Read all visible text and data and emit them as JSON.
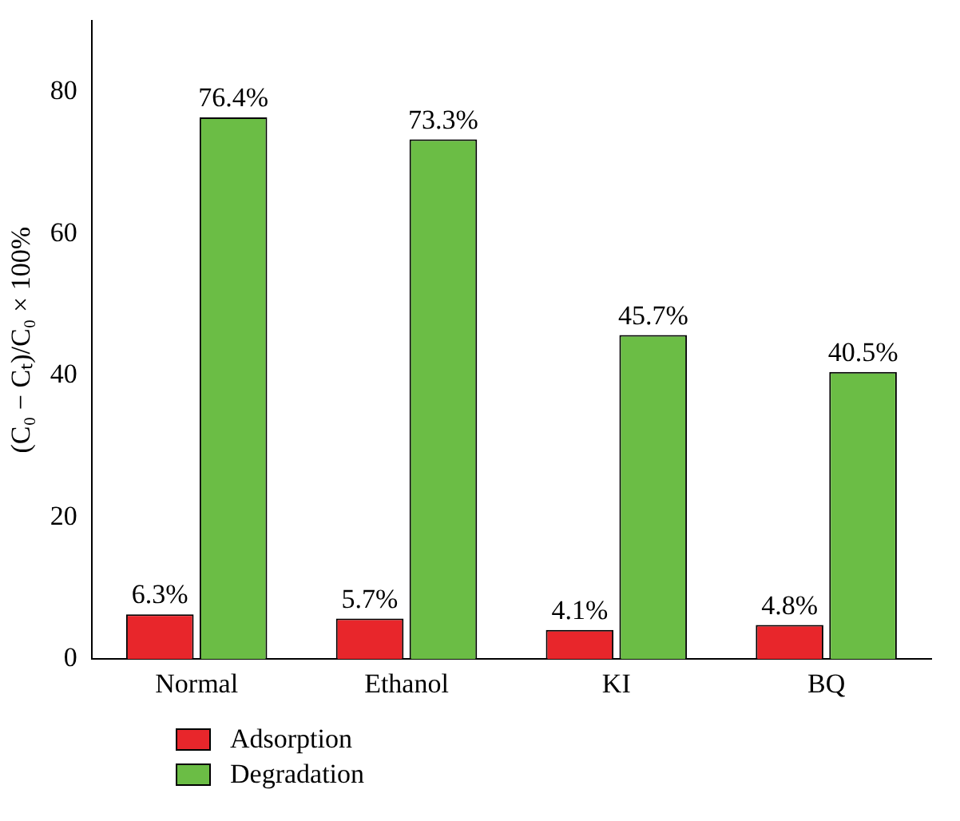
{
  "chart_data": {
    "type": "bar",
    "ylabel": "(C₀ − Cₜ)/C₀ × 100%",
    "categories": [
      "Normal",
      "Ethanol",
      "KI",
      "BQ"
    ],
    "series": [
      {
        "name": "Adsorption",
        "color": "#e8262b",
        "values": [
          6.3,
          5.7,
          4.1,
          4.8
        ],
        "value_labels": [
          "6.3%",
          "5.7%",
          "4.1%",
          "4.8%"
        ]
      },
      {
        "name": "Degradation",
        "color": "#6bbd45",
        "values": [
          76.4,
          73.3,
          45.7,
          40.5
        ],
        "value_labels": [
          "76.4%",
          "73.3%",
          "45.7%",
          "40.5%"
        ]
      }
    ],
    "ylim": [
      0,
      90
    ],
    "yticks": [
      0,
      20,
      40,
      60,
      80
    ],
    "grid": false,
    "legend": "bottom left"
  }
}
